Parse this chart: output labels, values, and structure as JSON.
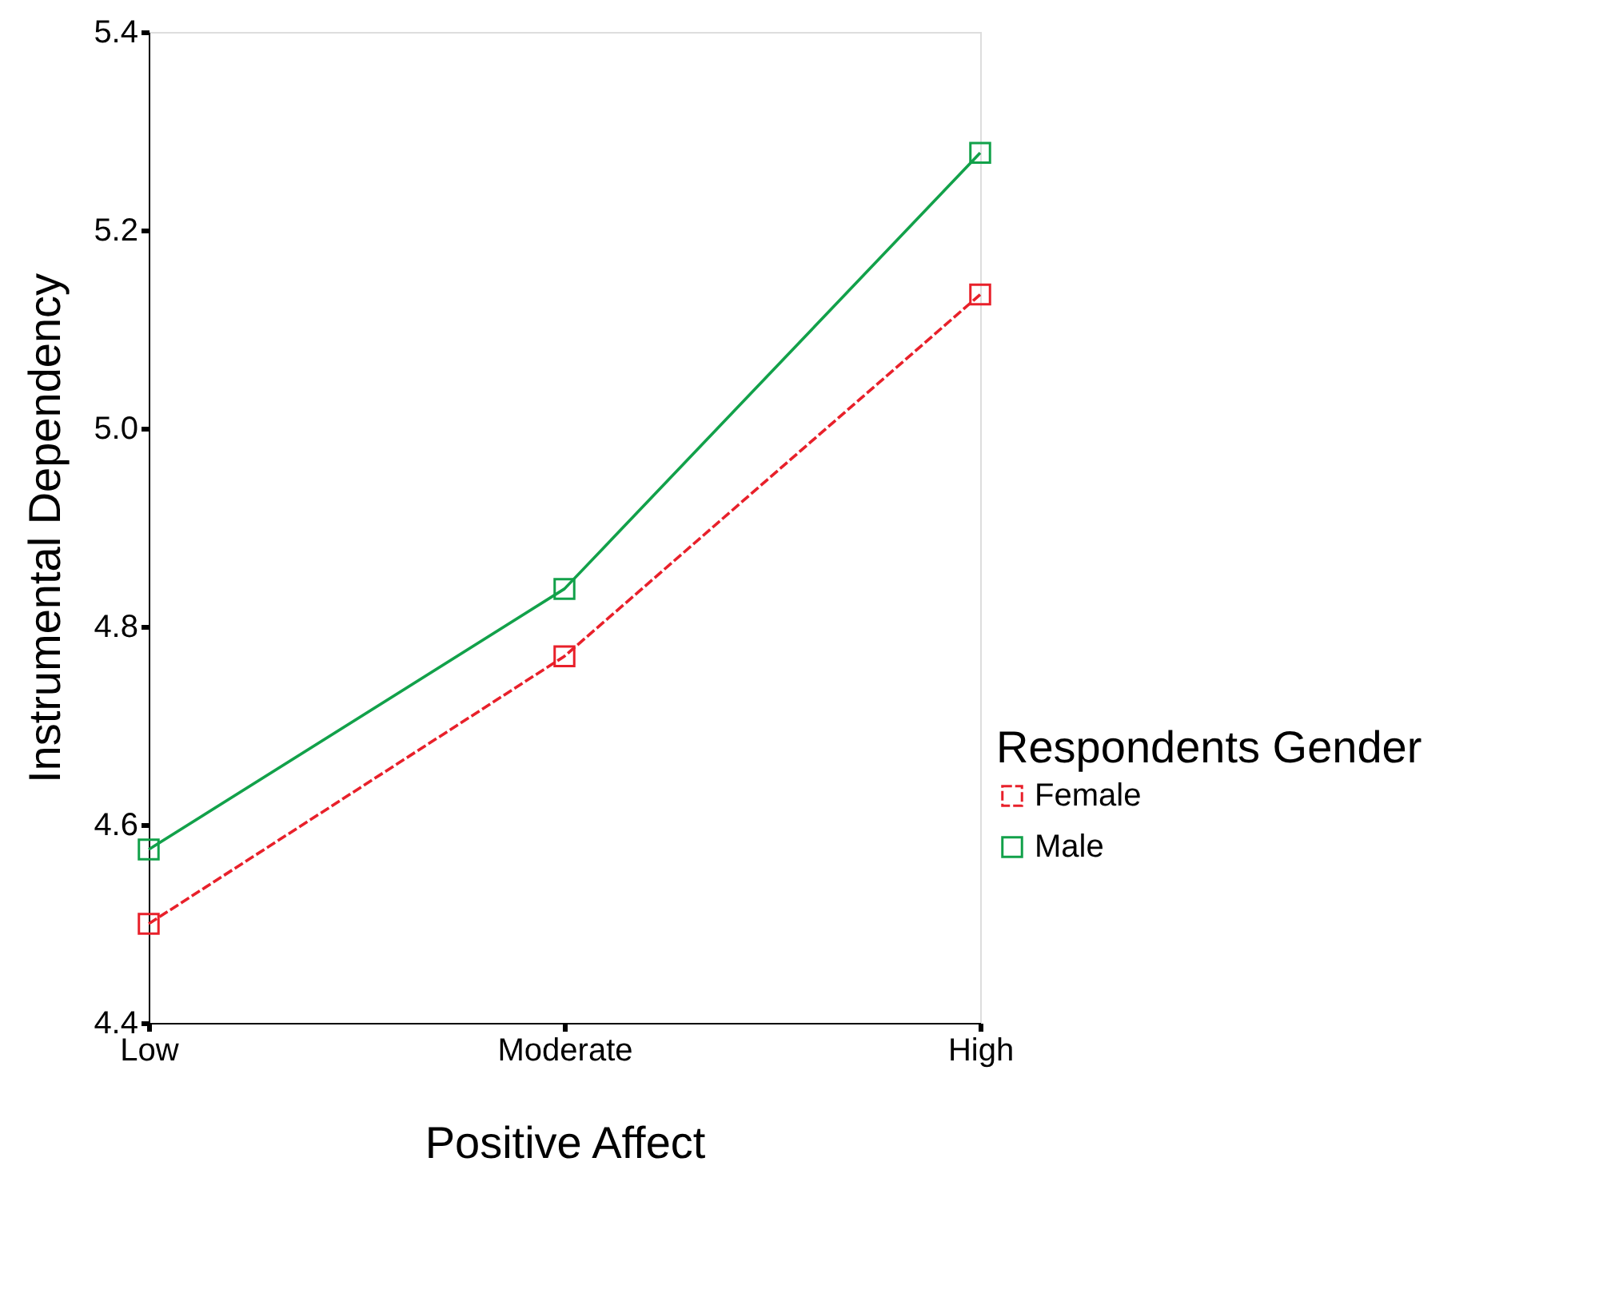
{
  "chart_data": {
    "type": "line",
    "xlabel": "Positive Affect",
    "ylabel": "Instrumental Dependency",
    "legend_title": "Respondents Gender",
    "categories": [
      "Low",
      "Moderate",
      "High"
    ],
    "series": [
      {
        "name": "Female",
        "color": "#e8202a",
        "line_style": "dashed",
        "values": [
          4.5,
          4.77,
          5.135
        ]
      },
      {
        "name": "Male",
        "color": "#12a14a",
        "line_style": "solid",
        "values": [
          4.575,
          4.838,
          5.278
        ]
      }
    ],
    "ylim": [
      4.4,
      5.4
    ],
    "yticks": [
      4.4,
      4.6,
      4.8,
      {
        "value": 5,
        "label": "5.0"
      },
      5.2,
      5.4
    ],
    "grid": false,
    "legend": "right",
    "marker": "square"
  }
}
